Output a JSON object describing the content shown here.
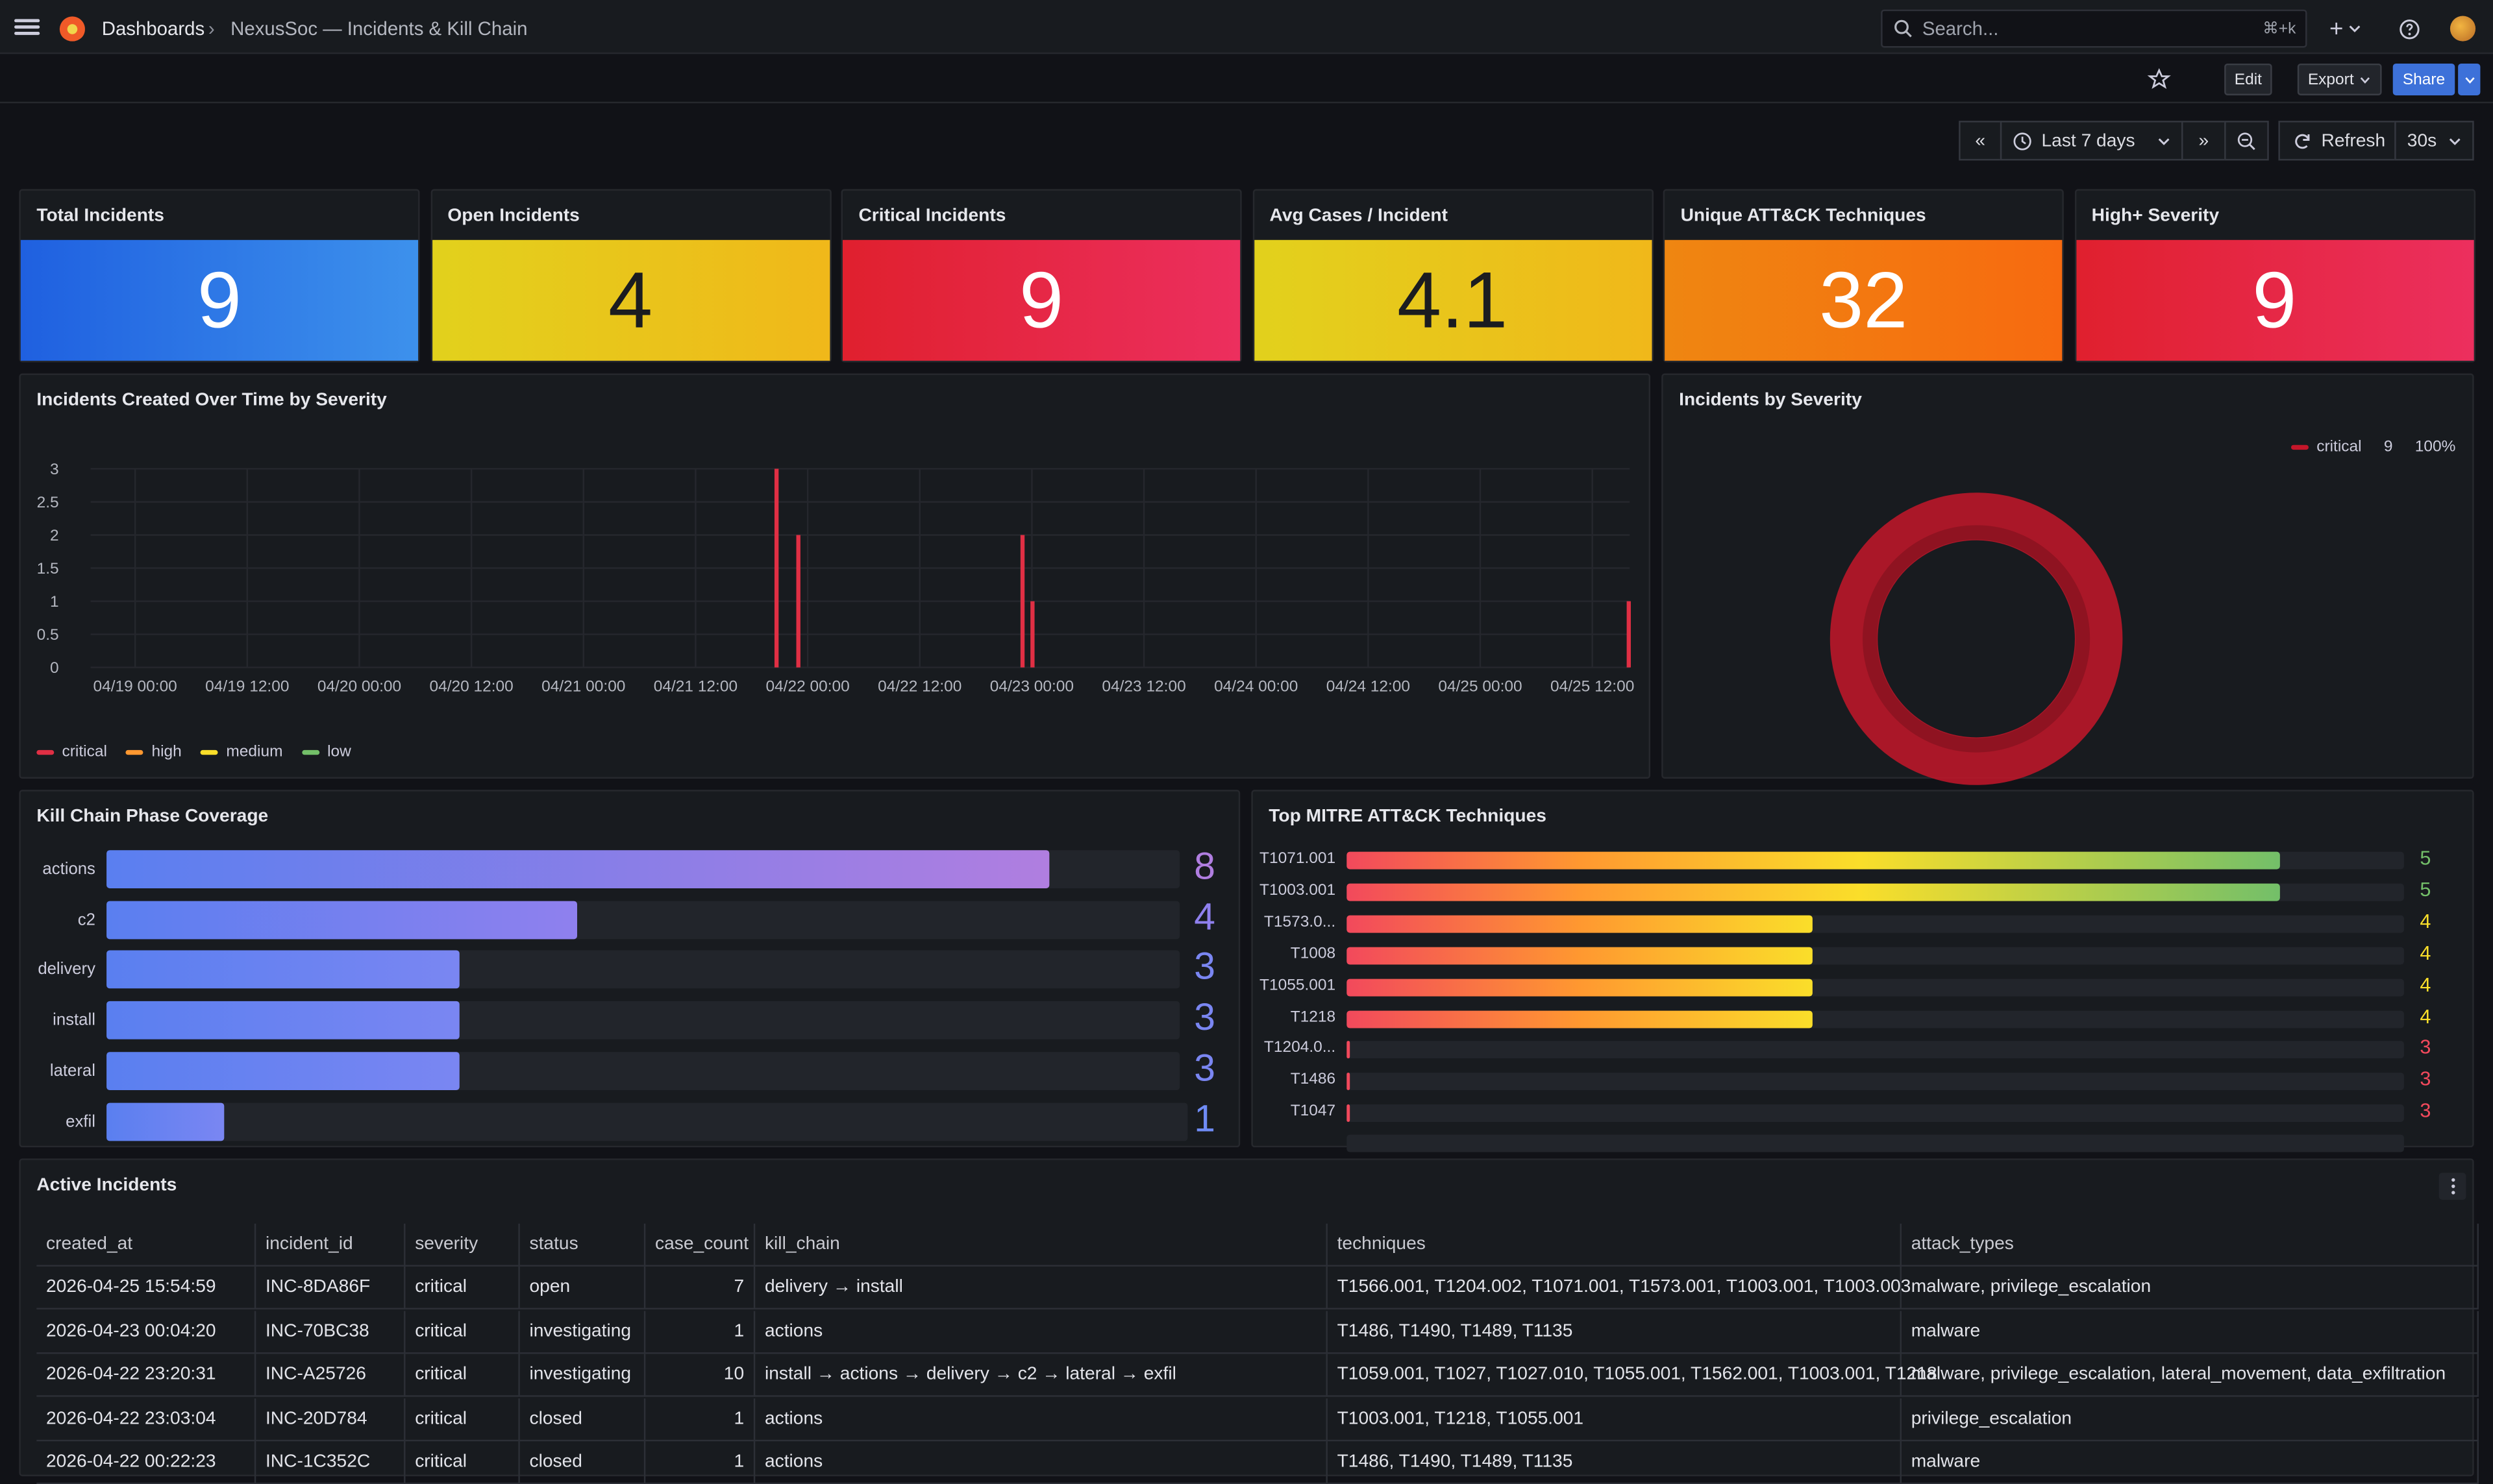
{
  "topbar": {
    "breadcrumb_root": "Dashboards",
    "breadcrumb_sep": "›",
    "breadcrumb_current": "NexusSoc — Incidents & Kill Chain",
    "search_placeholder": "Search...",
    "search_shortcut": "⌘+k",
    "add_label": "+"
  },
  "subbar": {
    "edit_label": "Edit",
    "export_label": "Export",
    "share_label": "Share"
  },
  "timebar": {
    "range_label": "Last 7 days",
    "refresh_label": "Refresh",
    "interval_label": "30s"
  },
  "stats": [
    {
      "title": "Total Incidents",
      "value": "9",
      "gradient": [
        "#1f60e0",
        "#3d91ec"
      ],
      "color": "#ffffff"
    },
    {
      "title": "Open Incidents",
      "value": "4",
      "gradient": [
        "#e2d11c",
        "#f0b81a"
      ],
      "color": "#1b1c20"
    },
    {
      "title": "Critical Incidents",
      "value": "9",
      "gradient": [
        "#e0202e",
        "#ec2f5e"
      ],
      "color": "#ffffff"
    },
    {
      "title": "Avg Cases / Incident",
      "value": "4.1",
      "gradient": [
        "#e2d11c",
        "#f0b81a"
      ],
      "color": "#1b1c20"
    },
    {
      "title": "Unique ATT&CK Techniques",
      "value": "32",
      "gradient": [
        "#ef8611",
        "#f76a10"
      ],
      "color": "#ffffff"
    },
    {
      "title": "High+ Severity",
      "value": "9",
      "gradient": [
        "#e0202e",
        "#ec2f5e"
      ],
      "color": "#ffffff"
    }
  ],
  "timeseries": {
    "title": "Incidents Created Over Time by Severity",
    "chart_data": {
      "type": "bar",
      "x_ticks": [
        "04/19 00:00",
        "04/19 12:00",
        "04/20 00:00",
        "04/20 12:00",
        "04/21 00:00",
        "04/21 12:00",
        "04/22 00:00",
        "04/22 12:00",
        "04/23 00:00",
        "04/23 12:00",
        "04/24 00:00",
        "04/24 12:00",
        "04/25 00:00",
        "04/25 12:00"
      ],
      "y_ticks": [
        "0",
        "0.5",
        "1",
        "1.5",
        "2",
        "2.5",
        "3"
      ],
      "ylim": [
        0,
        3
      ],
      "series": [
        {
          "name": "critical",
          "color": "#e02f44",
          "points": [
            {
              "x": "04/21 20:40",
              "y": 3
            },
            {
              "x": "04/21 23:00",
              "y": 2
            },
            {
              "x": "04/22 23:00",
              "y": 2
            },
            {
              "x": "04/23 00:04",
              "y": 1
            },
            {
              "x": "04/25 15:54",
              "y": 1
            }
          ]
        },
        {
          "name": "high",
          "color": "#ff9830",
          "points": []
        },
        {
          "name": "medium",
          "color": "#fade2a",
          "points": []
        },
        {
          "name": "low",
          "color": "#73bf69",
          "points": []
        }
      ]
    }
  },
  "donut": {
    "title": "Incidents by Severity",
    "legend_label": "critical",
    "legend_value": "9",
    "legend_pct": "100%",
    "chart_data": {
      "type": "pie",
      "labels": [
        "critical"
      ],
      "values": [
        9
      ],
      "colors": [
        "#c4162a"
      ]
    }
  },
  "killchain": {
    "title": "Kill Chain Phase Coverage",
    "chart_data": {
      "type": "bar",
      "categories": [
        "actions",
        "c2",
        "delivery",
        "install",
        "lateral",
        "exfil"
      ],
      "values": [
        8,
        4,
        3,
        3,
        3,
        1
      ],
      "max": 9
    }
  },
  "mitre": {
    "title": "Top MITRE ATT&CK Techniques",
    "chart_data": {
      "type": "bar",
      "categories": [
        "T1071.001",
        "T1003.001",
        "T1573.0...",
        "T1008",
        "T1055.001",
        "T1218",
        "T1204.0...",
        "T1486",
        "T1047"
      ],
      "values": [
        5,
        5,
        4,
        4,
        4,
        4,
        3,
        3,
        3
      ],
      "min": 3,
      "max": 6
    }
  },
  "table": {
    "title": "Active Incidents",
    "columns": [
      "created_at",
      "incident_id",
      "severity",
      "status",
      "case_count",
      "kill_chain",
      "techniques",
      "attack_types"
    ],
    "rows": [
      [
        "2026-04-25 15:54:59",
        "INC-8DA86F",
        "critical",
        "open",
        "7",
        "delivery → install",
        "T1566.001, T1204.002, T1071.001, T1573.001, T1003.001, T1003.003",
        "malware, privilege_escalation"
      ],
      [
        "2026-04-23 00:04:20",
        "INC-70BC38",
        "critical",
        "investigating",
        "1",
        "actions",
        "T1486, T1490, T1489, T1135",
        "malware"
      ],
      [
        "2026-04-22 23:20:31",
        "INC-A25726",
        "critical",
        "investigating",
        "10",
        "install → actions → delivery → c2 → lateral → exfil",
        "T1059.001, T1027, T1027.010, T1055.001, T1562.001, T1003.001, T1218",
        "malware, privilege_escalation, lateral_movement, data_exfiltration"
      ],
      [
        "2026-04-22 23:03:04",
        "INC-20D784",
        "critical",
        "closed",
        "1",
        "actions",
        "T1003.001, T1218, T1055.001",
        "privilege_escalation"
      ],
      [
        "2026-04-22 00:22:23",
        "INC-1C352C",
        "critical",
        "closed",
        "1",
        "actions",
        "T1486, T1490, T1489, T1135",
        "malware"
      ]
    ]
  }
}
